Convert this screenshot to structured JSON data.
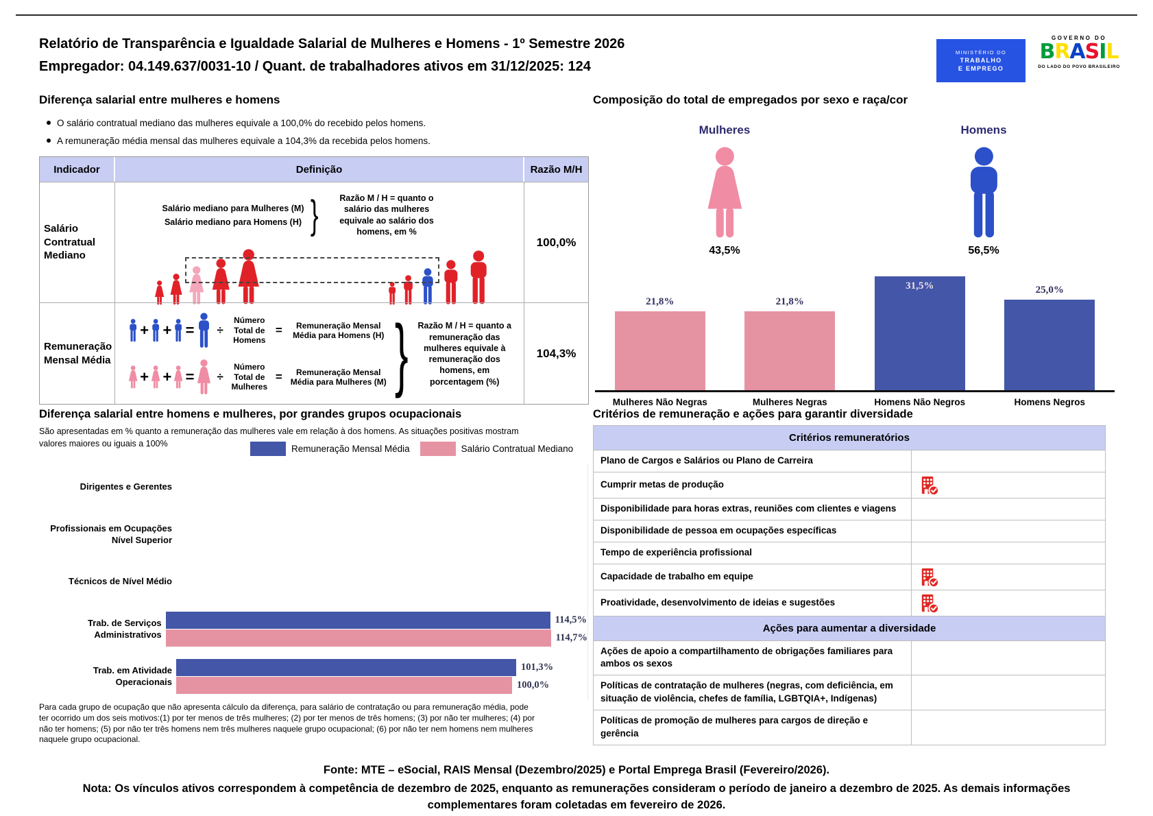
{
  "header": {
    "title_line1": "Relatório de Transparência e Igualdade Salarial de Mulheres e Homens - 1º Semestre 2026",
    "title_line2": "Empregador: 04.149.637/0031-10 / Quant. de trabalhadores ativos em 31/12/2025: 124",
    "mte_logo": {
      "line1": "MINISTÉRIO DO",
      "line2": "TRABALHO",
      "line3": "E EMPREGO"
    },
    "gov_logo": {
      "top": "GOVERNO DO",
      "brand": "BRASIL",
      "bottom": "DO LADO DO POVO BRASILEIRO"
    }
  },
  "pay_gap_section": {
    "title": "Diferença salarial entre mulheres e homens",
    "bullets": [
      "O salário contratual mediano das mulheres equivale a 100,0% do recebido pelos homens.",
      "A remuneração média mensal das mulheres equivale a 104,3% da recebida pelos homens."
    ],
    "table": {
      "headers": [
        "Indicador",
        "Definição",
        "Razão M/H"
      ],
      "rows": [
        {
          "indicator": "Salário Contratual Mediano",
          "def_line1": "Salário mediano para Mulheres (M)",
          "def_line2": "Salário mediano para Homens (H)",
          "def_note": "Razão M / H = quanto o salário das mulheres equivale ao salário dos homens, em %",
          "ratio": "100,0%"
        },
        {
          "indicator": "Remuneração Mensal Média",
          "men_divisor": "Número Total de Homens",
          "men_result": "Remuneração Mensal Média para Homens (H)",
          "women_divisor": "Número Total de Mulheres",
          "women_result": "Remuneração Mensal Média para Mulheres (M)",
          "def_note": "Razão M / H = quanto a remuneração das mulheres equivale à remuneração dos homens, em porcentagem (%)",
          "ratio": "104,3%"
        }
      ]
    }
  },
  "composition_section": {
    "title": "Composição do total de empregados por sexo e raça/cor",
    "women_label": "Mulheres",
    "women_pct": "43,5%",
    "men_label": "Homens",
    "men_pct": "56,5%"
  },
  "occupational_section": {
    "title": "Diferença salarial entre homens e mulheres, por grandes grupos ocupacionais",
    "subtitle": "São apresentadas em % quanto a remuneração das mulheres vale em relação à dos homens. As situações positivas mostram valores maiores ou iguais a 100%",
    "legend": [
      {
        "label": "Remuneração Mensal Média",
        "color": "#4456a8"
      },
      {
        "label": "Salário Contratual Mediano",
        "color": "#e593a3"
      }
    ],
    "footnote": "Para cada grupo de ocupação que não apresenta cálculo da diferença, para salário de contratação ou para remuneração média, pode ter ocorrido um dos seis motivos:(1) por ter menos de três mulheres; (2) por ter menos de três homens; (3) por não ter mulheres; (4) por não ter homens; (5) por não ter três homens nem três mulheres naquele grupo ocupacional; (6) por não ter nem homens nem mulheres naquele grupo ocupacional."
  },
  "criteria_section": {
    "title": "Critérios de remuneração e ações para garantir diversidade",
    "groups": [
      {
        "header": "Critérios remuneratórios",
        "rows": [
          {
            "label": "Plano de Cargos e Salários ou Plano de Carreira",
            "checked": false
          },
          {
            "label": "Cumprir metas de produção",
            "checked": true
          },
          {
            "label": "Disponibilidade para horas extras, reuniões com clientes e viagens",
            "checked": false
          },
          {
            "label": "Disponibilidade de pessoa em ocupações específicas",
            "checked": false
          },
          {
            "label": "Tempo de experiência profissional",
            "checked": false
          },
          {
            "label": "Capacidade de trabalho em equipe",
            "checked": true
          },
          {
            "label": "Proatividade, desenvolvimento de ideias e sugestões",
            "checked": true
          }
        ]
      },
      {
        "header": "Ações para aumentar a diversidade",
        "rows": [
          {
            "label": "Ações de apoio a compartilhamento de obrigações familiares para ambos os sexos",
            "checked": false
          },
          {
            "label": "Políticas de contratação de mulheres (negras, com deficiência, em situação de violência, chefes de família, LGBTQIA+, Indígenas)",
            "checked": false
          },
          {
            "label": "Políticas de promoção de mulheres para cargos de direção e gerência",
            "checked": false
          }
        ]
      }
    ]
  },
  "chart_data": [
    {
      "type": "bar",
      "title": "Composição do total de empregados por sexo e raça/cor",
      "categories": [
        "Mulheres Não Negras",
        "Mulheres Negras",
        "Homens Não Negros",
        "Homens Negros"
      ],
      "values": [
        21.8,
        21.8,
        31.5,
        25.0
      ],
      "value_labels": [
        "21,8%",
        "21,8%",
        "31,5%",
        "25,0%"
      ],
      "label_position": [
        "above",
        "above",
        "inside",
        "above"
      ],
      "bar_colors": [
        "#e593a3",
        "#e593a3",
        "#4456a8",
        "#4456a8"
      ],
      "group_summary": [
        {
          "label": "Mulheres",
          "value": 43.5,
          "display": "43,5%"
        },
        {
          "label": "Homens",
          "value": 56.5,
          "display": "56,5%"
        }
      ],
      "ylim": [
        0,
        33
      ],
      "grid": false,
      "legend_position": "none"
    },
    {
      "type": "bar",
      "orientation": "horizontal",
      "title": "Diferença salarial entre homens e mulheres, por grandes grupos ocupacionais",
      "categories": [
        "Dirigentes e Gerentes",
        "Profissionais em Ocupações Nível Superior",
        "Técnicos de Nível Médio",
        "Trab. de Serviços Administrativos",
        "Trab. em Atividade Operacionais"
      ],
      "series": [
        {
          "name": "Remuneração Mensal Média",
          "color": "#4456a8",
          "values": [
            null,
            null,
            null,
            114.5,
            101.3
          ],
          "value_labels": [
            "",
            "",
            "",
            "114,5%",
            "101,3%"
          ]
        },
        {
          "name": "Salário Contratual Mediano",
          "color": "#e593a3",
          "values": [
            null,
            null,
            null,
            114.7,
            100.0
          ],
          "value_labels": [
            "",
            "",
            "",
            "114,7%",
            "100,0%"
          ]
        }
      ],
      "xlim": [
        0,
        115
      ],
      "grid": false,
      "legend_position": "top"
    }
  ],
  "footer": {
    "fonte": "Fonte: MTE – eSocial, RAIS Mensal (Dezembro/2025) e Portal Emprega Brasil (Fevereiro/2026).",
    "nota": "Nota: Os vínculos ativos correspondem à competência de dezembro de 2025, enquanto as remunerações consideram o período de janeiro a dezembro de 2025. As demais informações complementares foram coletadas em fevereiro de 2026."
  },
  "colors": {
    "header_fill": "#c8cdf3",
    "bar_blue": "#4456a8",
    "bar_pink": "#e593a3",
    "male_icon_blue": "#2b50c8",
    "female_icon_pink": "#f08ca4",
    "figure_red": "#e02128",
    "figure_highlight_pink": "#f4a7bb",
    "navy_label": "#2e2a70",
    "check_icon_red": "#e02823",
    "mte_logo_blue": "#2753e3",
    "brand_letter_palette": [
      "#009c3b",
      "#ffdf00",
      "#0a43c4",
      "#e8112d",
      "#009c3b",
      "#ffdf00"
    ]
  }
}
